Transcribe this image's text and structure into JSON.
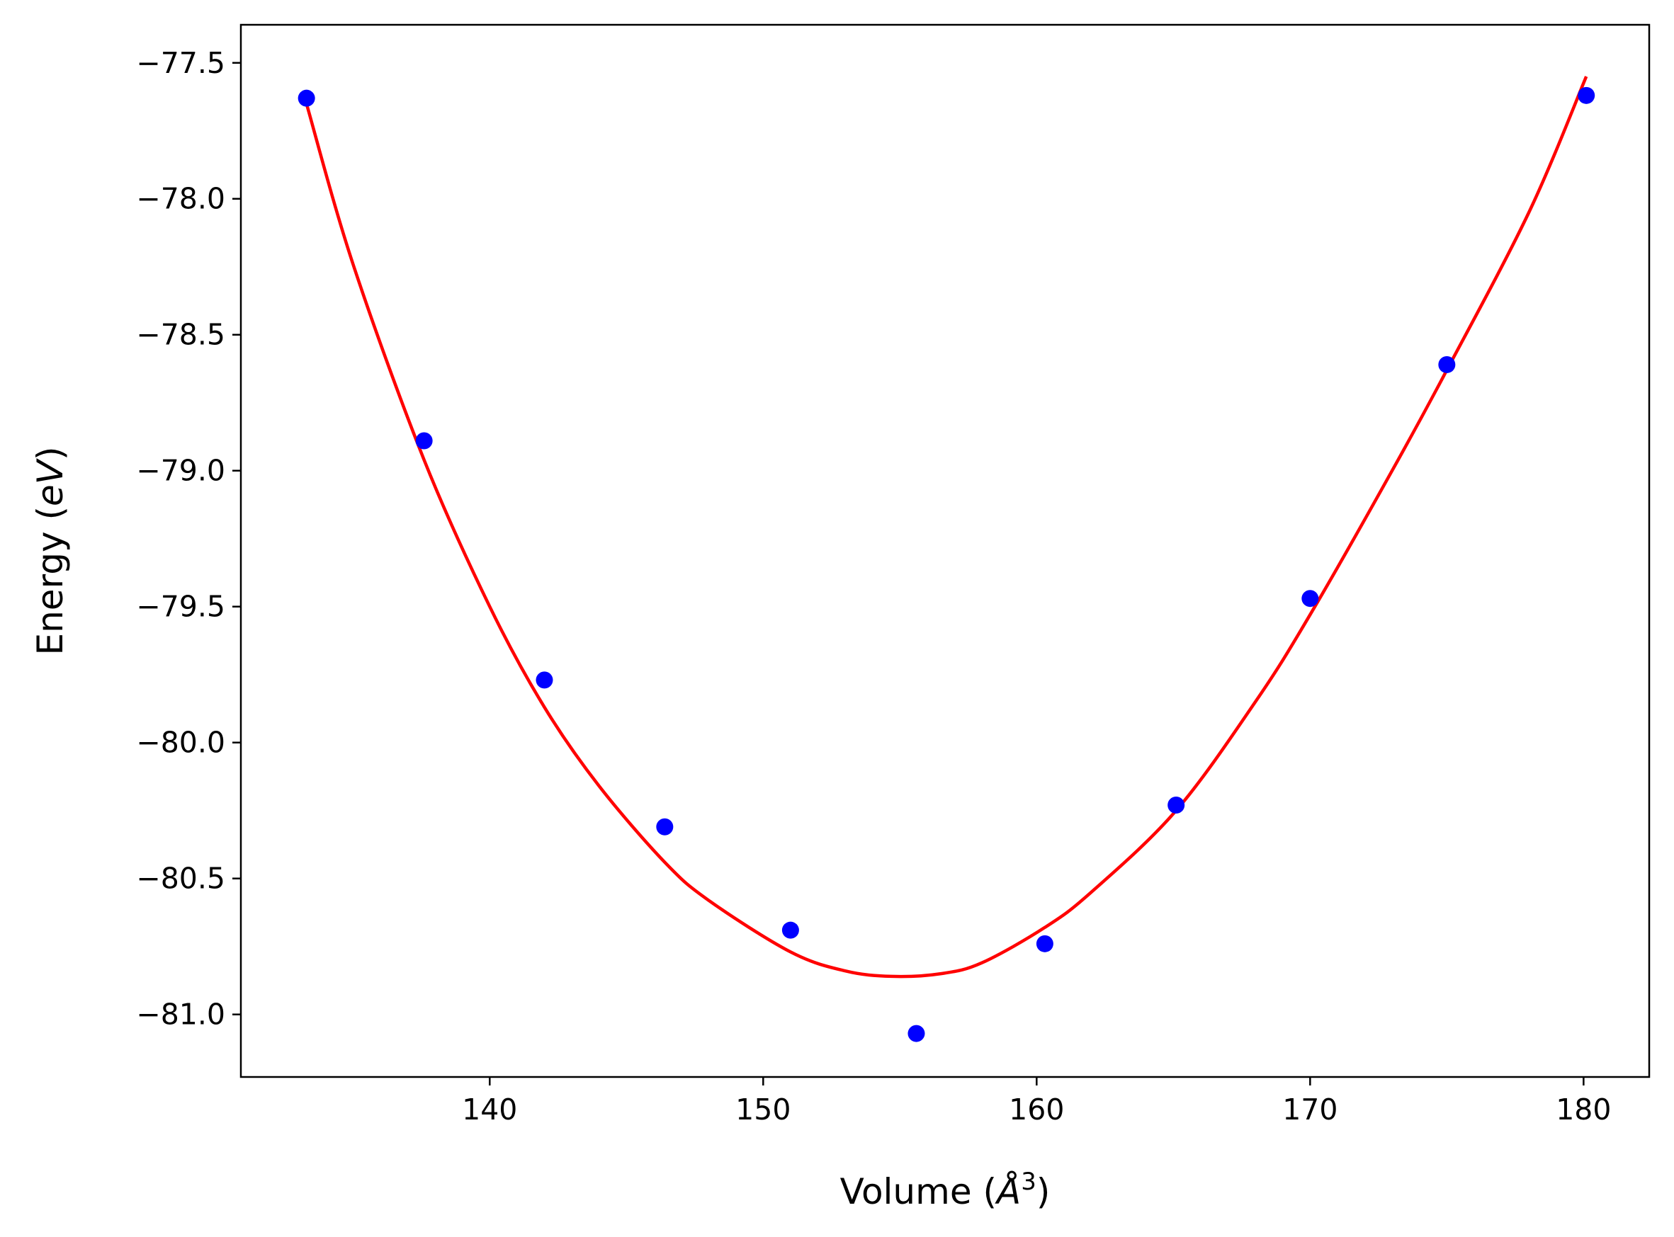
{
  "chart_data": {
    "type": "scatter",
    "title": "",
    "xlabel": {
      "prefix": "Volume (",
      "symbol": "Å",
      "sup": "3",
      "suffix": ")"
    },
    "ylabel": {
      "prefix": "Energy (",
      "italic": "eV",
      "suffix": ")"
    },
    "xlim": [
      130.9,
      182.4
    ],
    "ylim": [
      -81.23,
      -77.36
    ],
    "xticks": [
      140,
      150,
      160,
      170,
      180
    ],
    "xtick_labels": [
      "140",
      "150",
      "160",
      "170",
      "180"
    ],
    "yticks": [
      -77.5,
      -78.0,
      -78.5,
      -79.0,
      -79.5,
      -80.0,
      -80.5,
      -81.0
    ],
    "ytick_labels": [
      "−77.5",
      "−78.0",
      "−78.5",
      "−79.0",
      "−79.5",
      "−80.0",
      "−80.5",
      "−81.0"
    ],
    "grid": false,
    "series": [
      {
        "kind": "points",
        "color": "#0000ff",
        "x": [
          133.3,
          137.6,
          142.0,
          146.4,
          151.0,
          155.6,
          160.3,
          165.1,
          170.0,
          175.0,
          180.1
        ],
        "y": [
          -77.63,
          -78.89,
          -79.77,
          -80.31,
          -80.69,
          -81.07,
          -80.74,
          -80.23,
          -79.47,
          -78.61,
          -77.62
        ]
      },
      {
        "kind": "fit-curve",
        "color": "#ff0000",
        "x": [
          133.3,
          135.0,
          137.6,
          140.0,
          142.0,
          144.0,
          146.4,
          148.0,
          151.0,
          153.0,
          154.7,
          156.5,
          158.0,
          160.3,
          162.0,
          165.1,
          168.0,
          170.0,
          173.0,
          175.0,
          178.0,
          180.1
        ],
        "y": [
          -77.65,
          -78.24,
          -78.96,
          -79.5,
          -79.87,
          -80.16,
          -80.44,
          -80.58,
          -80.77,
          -80.84,
          -80.86,
          -80.85,
          -80.81,
          -80.68,
          -80.55,
          -80.25,
          -79.85,
          -79.53,
          -79.0,
          -78.63,
          -78.05,
          -77.55
        ]
      }
    ]
  }
}
